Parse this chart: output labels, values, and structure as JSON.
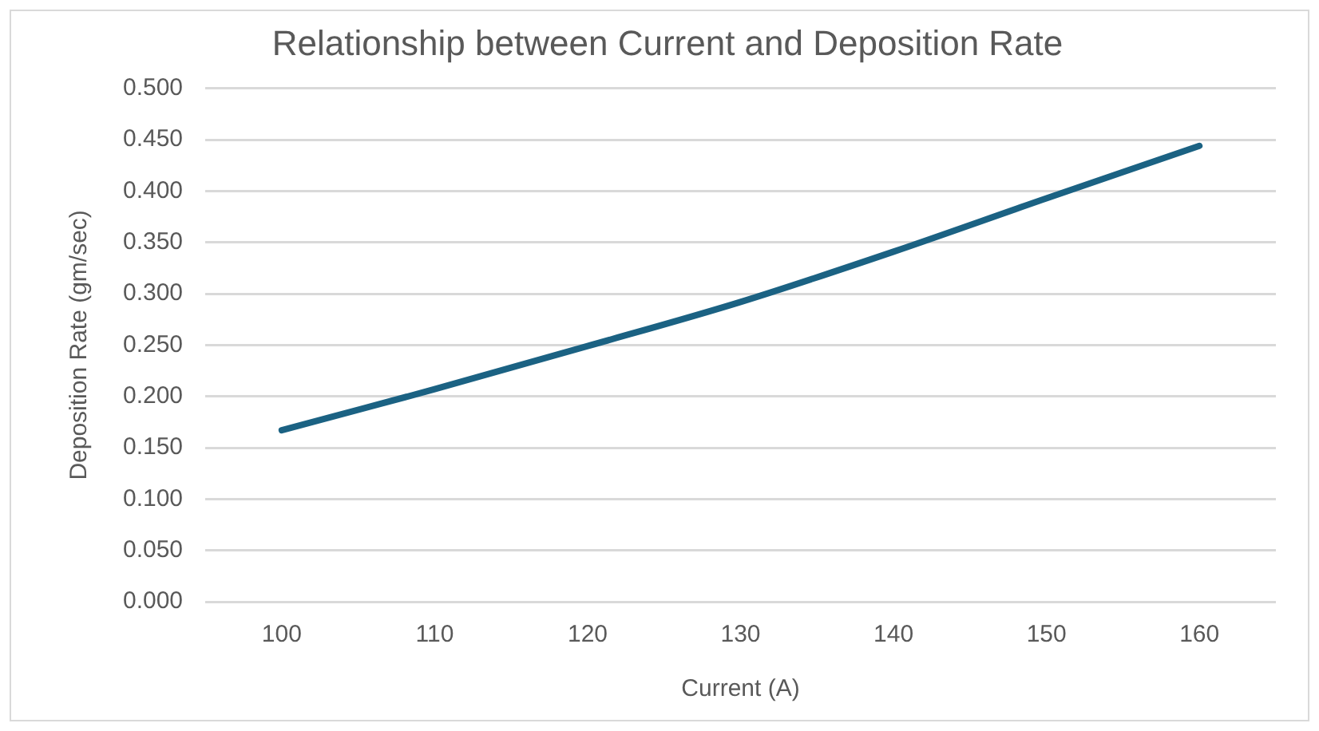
{
  "chart_data": {
    "type": "line",
    "title": "Relationship between Current and Deposition Rate",
    "xlabel": "Current (A)",
    "ylabel": "Deposition Rate (gm/sec)",
    "categories": [
      "100",
      "110",
      "120",
      "130",
      "140",
      "150",
      "160"
    ],
    "series": [
      {
        "color": "#1b6283",
        "values": [
          0.167,
          0.207,
          0.249,
          0.292,
          0.341,
          0.393,
          0.444
        ]
      }
    ],
    "ylim": [
      0,
      0.5
    ],
    "yticks": [
      {
        "value": 0,
        "label": "0.000"
      },
      {
        "value": 0.05,
        "label": "0.050"
      },
      {
        "value": 0.1,
        "label": "0.100"
      },
      {
        "value": 0.15,
        "label": "0.150"
      },
      {
        "value": 0.2,
        "label": "0.200"
      },
      {
        "value": 0.25,
        "label": "0.250"
      },
      {
        "value": 0.3,
        "label": "0.300"
      },
      {
        "value": 0.35,
        "label": "0.350"
      },
      {
        "value": 0.4,
        "label": "0.400"
      },
      {
        "value": 0.45,
        "label": "0.450"
      },
      {
        "value": 0.5,
        "label": "0.500"
      }
    ],
    "grid": "y",
    "legend": false,
    "marker": "none",
    "line_style": "solid"
  }
}
